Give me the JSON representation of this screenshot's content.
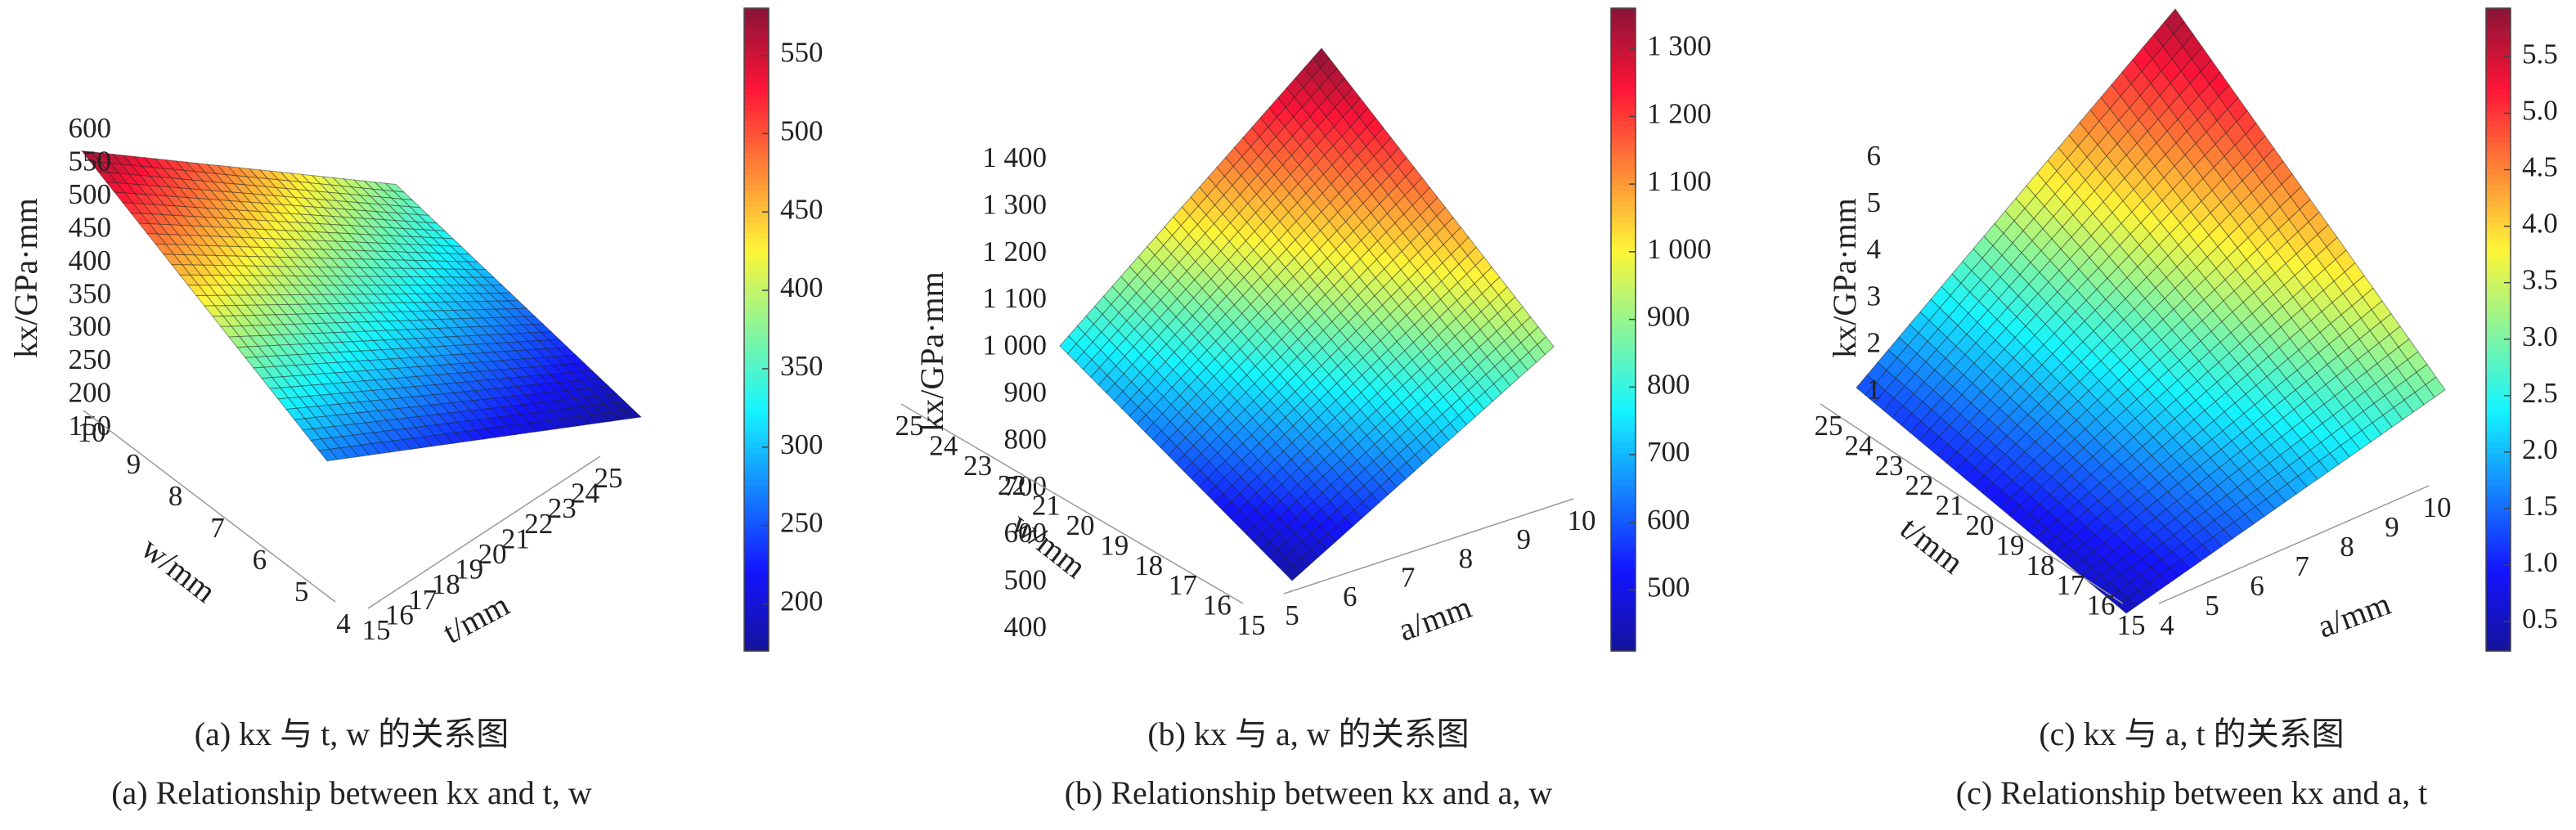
{
  "chart_data": [
    {
      "type": "surface",
      "colormap": "jet",
      "xlabel": "t/mm",
      "ylabel": "w/mm",
      "zlabel": "kx/GPa·mm",
      "caption_cn": "(a) kx 与 t, w 的关系图",
      "caption_en": "(a) Relationship between kx and t, w",
      "x": [
        15,
        25
      ],
      "y": [
        4,
        10
      ],
      "z": [
        [
          270,
          575
        ],
        [
          170,
          370
        ]
      ],
      "xlim": [
        15,
        25
      ],
      "xticks": [
        15,
        16,
        17,
        18,
        19,
        20,
        21,
        22,
        23,
        24,
        25
      ],
      "ylim": [
        4,
        10
      ],
      "yticks": [
        4,
        5,
        6,
        7,
        8,
        9,
        10
      ],
      "zlim": [
        150,
        600
      ],
      "zticks": [
        150,
        200,
        250,
        300,
        350,
        400,
        450,
        500,
        550,
        600
      ],
      "clim": [
        170,
        580
      ],
      "cticks": [
        200,
        250,
        300,
        350,
        400,
        450,
        500,
        550
      ]
    },
    {
      "type": "surface",
      "colormap": "jet",
      "xlabel": "a/mm",
      "ylabel": "w/mm",
      "zlabel": "kx/GPa·mm",
      "caption_cn": "(b) kx 与 a, w 的关系图",
      "caption_en": "(b) Relationship between kx and a, w",
      "x": [
        5,
        10
      ],
      "y": [
        15,
        25
      ],
      "z": [
        [
          420,
          760
        ],
        [
          900,
          1360
        ]
      ],
      "xlim": [
        5,
        10
      ],
      "xticks": [
        5,
        6,
        7,
        8,
        9,
        10
      ],
      "ylim": [
        15,
        25
      ],
      "yticks": [
        15,
        16,
        17,
        18,
        19,
        20,
        21,
        22,
        23,
        24,
        25
      ],
      "zlim": [
        400,
        1400
      ],
      "zticks": [
        400,
        500,
        600,
        700,
        800,
        900,
        {
          "value": 1000,
          "label": "1 000"
        },
        {
          "value": 1100,
          "label": "1 100"
        },
        {
          "value": 1200,
          "label": "1 200"
        },
        {
          "value": 1300,
          "label": "1 300"
        },
        {
          "value": 1400,
          "label": "1 400"
        }
      ],
      "clim": [
        410,
        1360
      ],
      "cticks": [
        500,
        600,
        700,
        800,
        900,
        {
          "value": 1000,
          "label": "1 000"
        },
        {
          "value": 1100,
          "label": "1 100"
        },
        {
          "value": 1200,
          "label": "1 200"
        },
        {
          "value": 1300,
          "label": "1 300"
        }
      ]
    },
    {
      "type": "surface",
      "colormap": "jet",
      "xlabel": "a/mm",
      "ylabel": "t/mm",
      "zlabel": "kx/GPa·mm",
      "caption_cn": "(c) kx 与 a, t 的关系图",
      "caption_en": "(c) Relationship between kx and a, t",
      "x": [
        4,
        10
      ],
      "y": [
        15,
        25
      ],
      "z": [
        [
          0.5,
          1.3
        ],
        [
          3.0,
          5.8
        ]
      ],
      "xlim": [
        4,
        10
      ],
      "xticks": [
        4,
        5,
        6,
        7,
        8,
        9,
        10
      ],
      "ylim": [
        15,
        25
      ],
      "yticks": [
        15,
        16,
        17,
        18,
        19,
        20,
        21,
        22,
        23,
        24,
        25
      ],
      "zlim": [
        0.5,
        6
      ],
      "zticks": [
        1,
        2,
        3,
        4,
        5,
        6
      ],
      "clim": [
        0.24,
        5.93
      ],
      "cticks": [
        0.5,
        {
          "value": 1,
          "label": "1.0"
        },
        1.5,
        {
          "value": 2,
          "label": "2.0"
        },
        2.5,
        {
          "value": 3,
          "label": "3.0"
        },
        3.5,
        {
          "value": 4,
          "label": "4.0"
        },
        4.5,
        {
          "value": 5,
          "label": "5.0"
        },
        5.5
      ]
    }
  ]
}
